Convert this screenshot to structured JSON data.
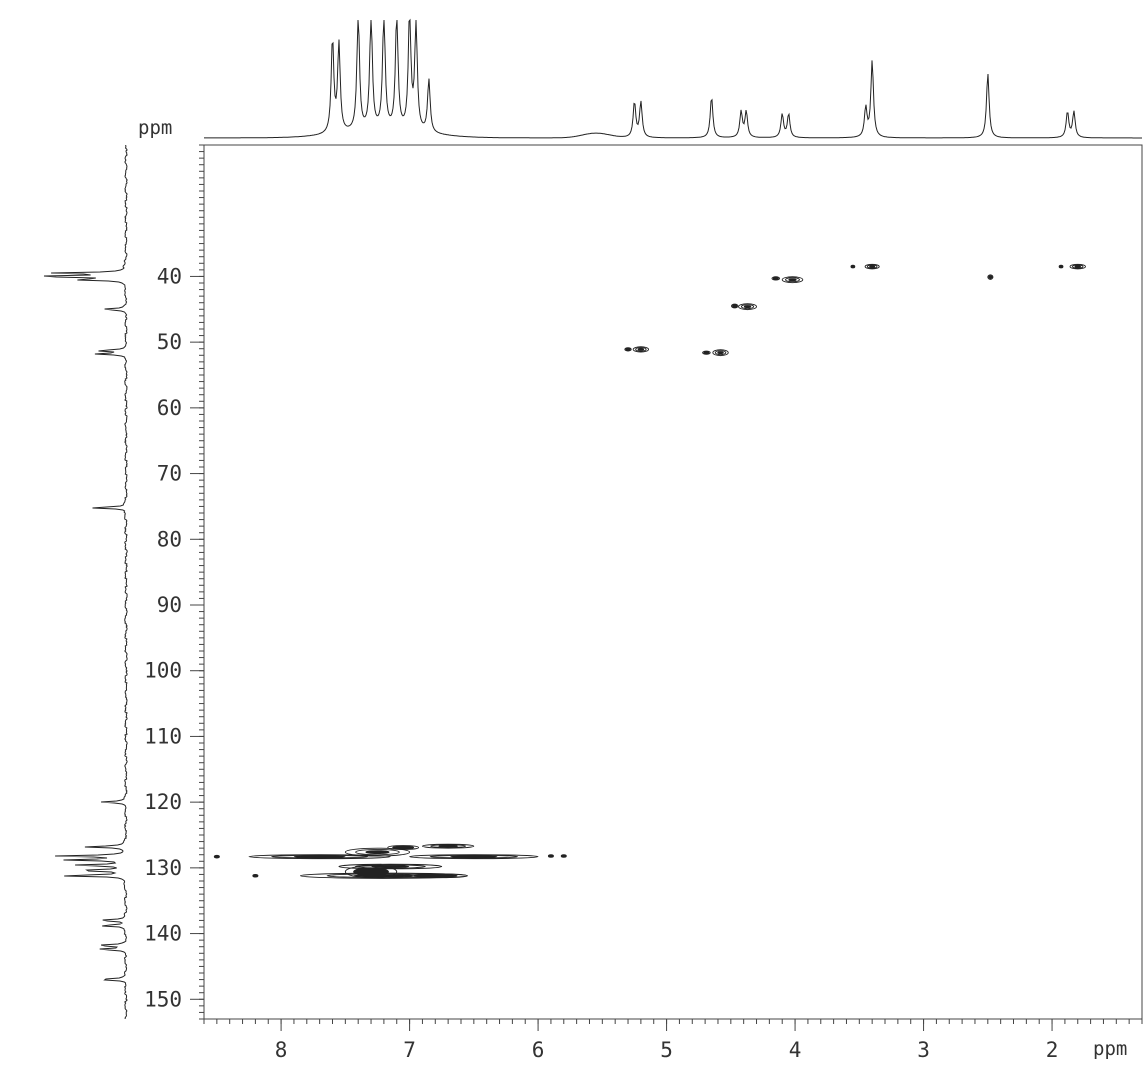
{
  "chart_data": {
    "type": "heatmap",
    "x_axis": {
      "unit": "ppm",
      "range": [
        8.6,
        1.3
      ],
      "ticks": [
        8,
        7,
        6,
        5,
        4,
        3,
        2
      ],
      "tick_labels": [
        "8",
        "7",
        "6",
        "5",
        "4",
        "3",
        "2"
      ],
      "minor_step": 0.1
    },
    "y_axis": {
      "unit": "ppm",
      "range": [
        20,
        153
      ],
      "ticks": [
        40,
        50,
        60,
        70,
        80,
        90,
        100,
        110,
        120,
        130,
        140,
        150
      ],
      "tick_labels": [
        "40",
        "50",
        "60",
        "70",
        "80",
        "90",
        "100",
        "110",
        "120",
        "130",
        "140",
        "150"
      ],
      "minor_step": 1
    },
    "proton_projection_peaks": [
      {
        "ppm": 7.6,
        "height": 0.8
      },
      {
        "ppm": 7.55,
        "height": 0.75
      },
      {
        "ppm": 7.4,
        "height": 1.0
      },
      {
        "ppm": 7.3,
        "height": 1.0
      },
      {
        "ppm": 7.2,
        "height": 1.0
      },
      {
        "ppm": 7.1,
        "height": 1.0
      },
      {
        "ppm": 7.0,
        "height": 1.0
      },
      {
        "ppm": 6.95,
        "height": 0.9
      },
      {
        "ppm": 6.85,
        "height": 0.45
      },
      {
        "ppm": 5.25,
        "height": 0.3
      },
      {
        "ppm": 5.2,
        "height": 0.3
      },
      {
        "ppm": 4.65,
        "height": 0.35
      },
      {
        "ppm": 4.42,
        "height": 0.22
      },
      {
        "ppm": 4.38,
        "height": 0.22
      },
      {
        "ppm": 4.1,
        "height": 0.2
      },
      {
        "ppm": 4.05,
        "height": 0.2
      },
      {
        "ppm": 3.45,
        "height": 0.25
      },
      {
        "ppm": 3.4,
        "height": 0.65
      },
      {
        "ppm": 2.5,
        "height": 0.55
      },
      {
        "ppm": 1.88,
        "height": 0.22
      },
      {
        "ppm": 1.83,
        "height": 0.22
      }
    ],
    "carbon_projection_peaks": [
      {
        "ppm": 39.5,
        "height": 0.75
      },
      {
        "ppm": 40.0,
        "height": 1.0
      },
      {
        "ppm": 40.5,
        "height": 0.5
      },
      {
        "ppm": 45.0,
        "height": 0.25
      },
      {
        "ppm": 51.3,
        "height": 0.3
      },
      {
        "ppm": 51.8,
        "height": 0.3
      },
      {
        "ppm": 75.2,
        "height": 0.4
      },
      {
        "ppm": 120.0,
        "height": 0.28
      },
      {
        "ppm": 126.8,
        "height": 0.45
      },
      {
        "ppm": 128.2,
        "height": 0.7
      },
      {
        "ppm": 128.8,
        "height": 0.6
      },
      {
        "ppm": 129.6,
        "height": 0.55
      },
      {
        "ppm": 130.4,
        "height": 0.5
      },
      {
        "ppm": 131.2,
        "height": 0.7
      },
      {
        "ppm": 138.0,
        "height": 0.3
      },
      {
        "ppm": 138.8,
        "height": 0.28
      },
      {
        "ppm": 141.8,
        "height": 0.3
      },
      {
        "ppm": 142.4,
        "height": 0.3
      },
      {
        "ppm": 147.0,
        "height": 0.3
      }
    ],
    "cross_peaks": [
      {
        "h": 3.4,
        "c": 38.5,
        "dh": 0.055,
        "dc": 0.35,
        "rings": 3
      },
      {
        "h": 3.55,
        "c": 38.5,
        "dh": 0.015,
        "dc": 0.2,
        "rings": 1
      },
      {
        "h": 1.8,
        "c": 38.5,
        "dh": 0.06,
        "dc": 0.35,
        "rings": 3
      },
      {
        "h": 1.93,
        "c": 38.5,
        "dh": 0.015,
        "dc": 0.2,
        "rings": 1
      },
      {
        "h": 4.02,
        "c": 40.5,
        "dh": 0.08,
        "dc": 0.45,
        "rings": 3
      },
      {
        "h": 4.15,
        "c": 40.3,
        "dh": 0.03,
        "dc": 0.25,
        "rings": 2
      },
      {
        "h": 2.48,
        "c": 40.1,
        "dh": 0.02,
        "dc": 0.35,
        "rings": 2
      },
      {
        "h": 4.37,
        "c": 44.6,
        "dh": 0.07,
        "dc": 0.45,
        "rings": 3
      },
      {
        "h": 4.47,
        "c": 44.5,
        "dh": 0.025,
        "dc": 0.3,
        "rings": 2
      },
      {
        "h": 5.2,
        "c": 51.1,
        "dh": 0.06,
        "dc": 0.4,
        "rings": 3
      },
      {
        "h": 5.3,
        "c": 51.1,
        "dh": 0.025,
        "dc": 0.25,
        "rings": 2
      },
      {
        "h": 4.58,
        "c": 51.6,
        "dh": 0.06,
        "dc": 0.45,
        "rings": 3
      },
      {
        "h": 4.69,
        "c": 51.6,
        "dh": 0.03,
        "dc": 0.25,
        "rings": 2
      },
      {
        "h": 7.7,
        "c": 128.3,
        "dh": 0.55,
        "dc": 0.3,
        "rings": 3
      },
      {
        "h": 6.5,
        "c": 128.3,
        "dh": 0.5,
        "dc": 0.3,
        "rings": 3
      },
      {
        "h": 6.7,
        "c": 126.7,
        "dh": 0.2,
        "dc": 0.3,
        "rings": 3
      },
      {
        "h": 7.05,
        "c": 126.9,
        "dh": 0.12,
        "dc": 0.3,
        "rings": 2
      },
      {
        "h": 7.25,
        "c": 127.6,
        "dh": 0.25,
        "dc": 0.6,
        "rings": 3
      },
      {
        "h": 7.15,
        "c": 129.8,
        "dh": 0.4,
        "dc": 0.35,
        "rings": 3
      },
      {
        "h": 7.2,
        "c": 131.2,
        "dh": 0.65,
        "dc": 0.4,
        "rings": 3
      },
      {
        "h": 6.8,
        "c": 131.2,
        "dh": 0.25,
        "dc": 0.3,
        "rings": 2
      },
      {
        "h": 7.3,
        "c": 130.6,
        "dh": 0.2,
        "dc": 0.9,
        "rings": 2
      },
      {
        "h": 8.5,
        "c": 128.3,
        "dh": 0.02,
        "dc": 0.2,
        "rings": 1
      },
      {
        "h": 5.9,
        "c": 128.2,
        "dh": 0.02,
        "dc": 0.2,
        "rings": 1
      },
      {
        "h": 5.8,
        "c": 128.2,
        "dh": 0.02,
        "dc": 0.2,
        "rings": 1
      },
      {
        "h": 8.2,
        "c": 131.2,
        "dh": 0.02,
        "dc": 0.2,
        "rings": 1
      }
    ]
  }
}
